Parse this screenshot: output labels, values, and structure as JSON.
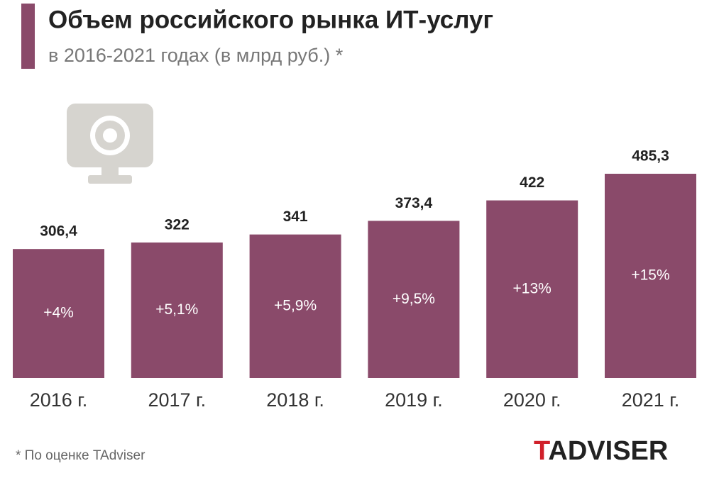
{
  "chart_data": {
    "type": "bar",
    "title": "Объем российского рынка ИТ-услуг",
    "subtitle": "в 2016-2021 годах (в млрд руб.) *",
    "categories": [
      "2016 г.",
      "2017 г.",
      "2018 г.",
      "2019 г.",
      "2020 г.",
      "2021 г."
    ],
    "values": [
      306.4,
      322,
      341,
      373.4,
      422,
      485.3
    ],
    "value_labels": [
      "306,4",
      "322",
      "341",
      "373,4",
      "422",
      "485,3"
    ],
    "growth_labels": [
      "+4%",
      "+5,1%",
      "+5,9%",
      "+9,5%",
      "+13%",
      "+15%"
    ],
    "color": "#8a4a6a",
    "footnote": "* По оценке TAdviser",
    "logo": {
      "first": "T",
      "rest": "ADVISER"
    }
  }
}
